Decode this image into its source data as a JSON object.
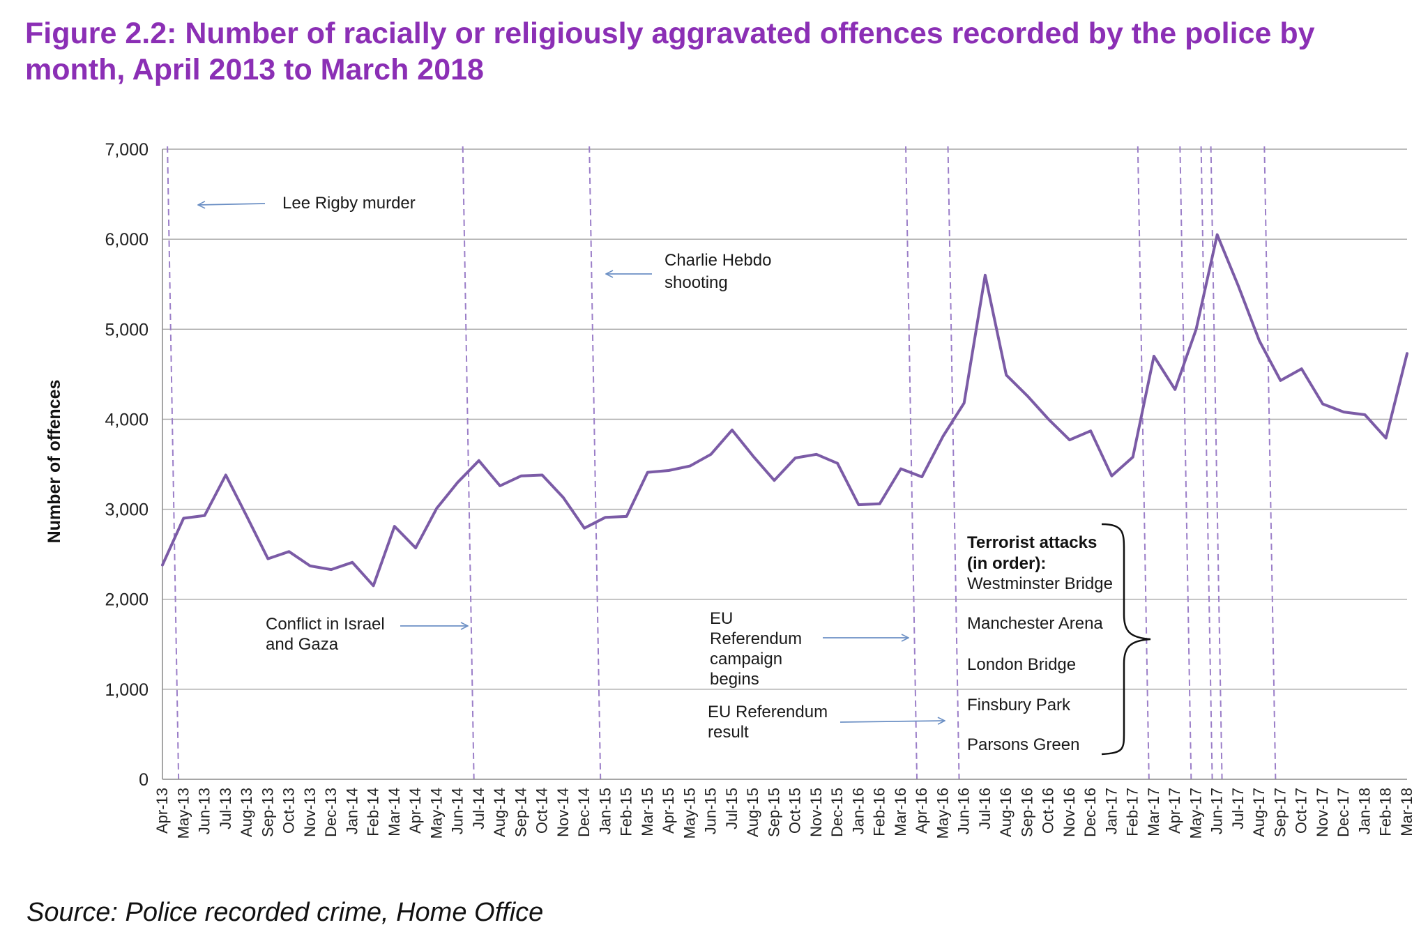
{
  "title": "Figure 2.2: Number of racially or religiously aggravated offences recorded by the police by month, April 2013 to March 2018",
  "source": "Source: Police recorded crime, Home Office",
  "chart_data": {
    "type": "line",
    "ylabel": "Number of offences",
    "ylim": [
      0,
      7000
    ],
    "yticks": [
      0,
      1000,
      2000,
      3000,
      4000,
      5000,
      6000,
      7000
    ],
    "ytick_labels": [
      "0",
      "1,000",
      "2,000",
      "3,000",
      "4,000",
      "5,000",
      "6,000",
      "7,000"
    ],
    "grid": true,
    "line_color": "#7b5ba6",
    "event_line_color": "#9b7ec8",
    "categories": [
      "Apr-13",
      "May-13",
      "Jun-13",
      "Jul-13",
      "Aug-13",
      "Sep-13",
      "Oct-13",
      "Nov-13",
      "Dec-13",
      "Jan-14",
      "Feb-14",
      "Mar-14",
      "Apr-14",
      "May-14",
      "Jun-14",
      "Jul-14",
      "Aug-14",
      "Sep-14",
      "Oct-14",
      "Nov-14",
      "Dec-14",
      "Jan-15",
      "Feb-15",
      "Mar-15",
      "Apr-15",
      "May-15",
      "Jun-15",
      "Jul-15",
      "Aug-15",
      "Sep-15",
      "Oct-15",
      "Nov-15",
      "Dec-15",
      "Jan-16",
      "Feb-16",
      "Mar-16",
      "Apr-16",
      "May-16",
      "Jun-16",
      "Jul-16",
      "Aug-16",
      "Sep-16",
      "Oct-16",
      "Nov-16",
      "Dec-16",
      "Jan-17",
      "Feb-17",
      "Mar-17",
      "Apr-17",
      "May-17",
      "Jun-17",
      "Jul-17",
      "Aug-17",
      "Sep-17",
      "Oct-17",
      "Nov-17",
      "Dec-17",
      "Jan-18",
      "Feb-18",
      "Mar-18"
    ],
    "series": [
      {
        "name": "Racially or religiously aggravated offences",
        "values": [
          2380,
          2900,
          2930,
          3380,
          2920,
          2450,
          2530,
          2370,
          2330,
          2410,
          2150,
          2810,
          2570,
          3010,
          3300,
          3540,
          3260,
          3370,
          3380,
          3130,
          2790,
          2910,
          2920,
          3410,
          3430,
          3480,
          3610,
          3880,
          3590,
          3320,
          3570,
          3610,
          3510,
          3050,
          3060,
          3450,
          3360,
          3810,
          4180,
          5600,
          4490,
          4260,
          4000,
          3770,
          3870,
          3370,
          3580,
          4700,
          4330,
          5000,
          6050,
          5480,
          4870,
          4430,
          4560,
          4170,
          4080,
          4050,
          3790,
          4730
        ]
      }
    ],
    "event_lines": [
      {
        "between": [
          "Apr-13",
          "May-13"
        ],
        "label": "Lee Rigby murder"
      },
      {
        "between": [
          "Jun-14",
          "Jul-14"
        ],
        "label": "Conflict in Israel and Gaza"
      },
      {
        "between": [
          "Dec-14",
          "Jan-15"
        ],
        "label": "Charlie Hebdo shooting"
      },
      {
        "between": [
          "Mar-16",
          "Apr-16"
        ],
        "label": "EU Referendum campaign begins"
      },
      {
        "between": [
          "May-16",
          "Jun-16"
        ],
        "label": "EU Referendum result"
      },
      {
        "between": [
          "Feb-17",
          "Mar-17"
        ],
        "label": "Westminster Bridge"
      },
      {
        "between": [
          "Apr-17",
          "May-17"
        ],
        "label": "Manchester Arena"
      },
      {
        "between": [
          "May-17",
          "Jun-17"
        ],
        "label": "London Bridge"
      },
      {
        "between": [
          "May-17",
          "Jun-17"
        ],
        "label": "Finsbury Park"
      },
      {
        "between": [
          "Aug-17",
          "Sep-17"
        ],
        "label": "Parsons Green"
      }
    ],
    "annotations": {
      "lee_rigby": "Lee Rigby murder",
      "charlie_hebdo": [
        "Charlie Hebdo",
        "shooting"
      ],
      "israel_gaza": [
        "Conflict in Israel",
        "and Gaza"
      ],
      "eu_campaign": [
        "EU",
        "Referendum",
        "campaign",
        "begins"
      ],
      "eu_result": [
        "EU Referendum",
        "result"
      ],
      "terror_heading": [
        "Terrorist attacks",
        "(in order):"
      ],
      "terror_attacks": [
        "Westminster Bridge",
        "Manchester Arena",
        "London Bridge",
        "Finsbury Park",
        "Parsons Green"
      ]
    }
  }
}
